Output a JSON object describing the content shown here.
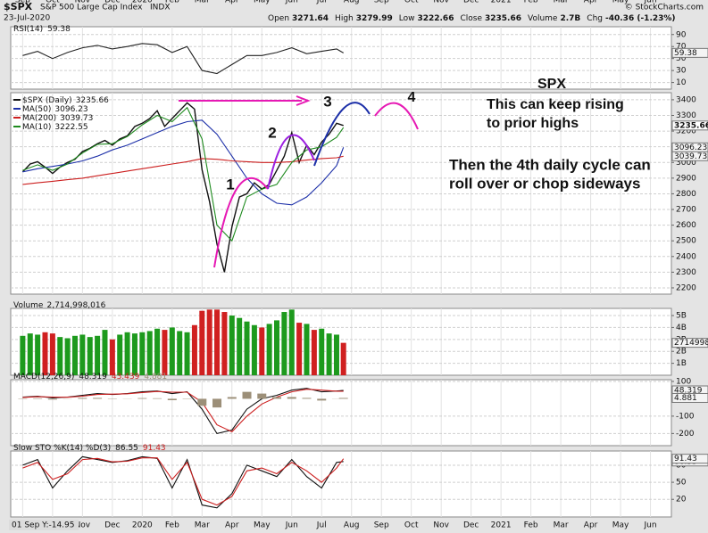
{
  "header": {
    "symbol": "$SPX",
    "name": "S&P 500 Large Cap Index",
    "exchange": "INDX",
    "date": "23-Jul-2020",
    "credit": "© StockCharts.com",
    "fields": [
      {
        "label": "Open",
        "value": "3271.64"
      },
      {
        "label": "High",
        "value": "3279.99"
      },
      {
        "label": "Low",
        "value": "3222.66"
      },
      {
        "label": "Close",
        "value": "3235.66"
      },
      {
        "label": "Volume",
        "value": "2.7B"
      },
      {
        "label": "Chg",
        "value": "-40.36 (-1.23%)"
      }
    ]
  },
  "chart_data": [
    {
      "type": "line",
      "title": "RSI(14)",
      "xlim": [
        -0.4,
        21.7
      ],
      "ylim": [
        -1,
        103
      ],
      "yticks": [
        90,
        70,
        50,
        30,
        10
      ],
      "grid": true,
      "series": [
        {
          "color": "#222222",
          "box": true,
          "x": [
            0,
            0.5,
            1,
            1.5,
            2,
            2.5,
            3,
            3.5,
            4,
            4.5,
            5,
            5.5,
            6,
            6.5,
            7,
            7.5,
            8,
            8.5,
            9,
            9.5,
            10,
            10.5,
            10.73
          ],
          "values": [
            55,
            62,
            50,
            60,
            68,
            72,
            66,
            70,
            75,
            73,
            60,
            70,
            30,
            25,
            40,
            55,
            55,
            60,
            68,
            58,
            62,
            66,
            59.38
          ]
        }
      ]
    },
    {
      "type": "line",
      "xlim": [
        -0.4,
        21.7
      ],
      "ylim": [
        2160,
        3445
      ],
      "grid": true,
      "yticks": [
        3400,
        3300,
        3200,
        3100,
        3000,
        2900,
        2800,
        2700,
        2600,
        2500,
        2400,
        2300,
        2200
      ],
      "xticks": [
        {
          "value": 0,
          "label": "Sep"
        },
        {
          "value": 1,
          "label": "Oct"
        },
        {
          "value": 2,
          "label": "Nov"
        },
        {
          "value": 3,
          "label": "Dec"
        },
        {
          "value": 4,
          "label": "2020"
        },
        {
          "value": 5,
          "label": "Feb"
        },
        {
          "value": 6,
          "label": "Mar"
        },
        {
          "value": 7,
          "label": "Apr"
        },
        {
          "value": 8,
          "label": "May"
        },
        {
          "value": 9,
          "label": "Jun"
        },
        {
          "value": 10,
          "label": "Jul"
        },
        {
          "value": 11,
          "label": "Aug"
        },
        {
          "value": 12,
          "label": "Sep"
        },
        {
          "value": 13,
          "label": "Oct"
        },
        {
          "value": 14,
          "label": "Nov"
        },
        {
          "value": 15,
          "label": "Dec"
        },
        {
          "value": 16,
          "label": "2021"
        },
        {
          "value": 17,
          "label": "Feb"
        },
        {
          "value": 18,
          "label": "Mar"
        },
        {
          "value": 19,
          "label": "Apr"
        },
        {
          "value": 20,
          "label": "May"
        },
        {
          "value": 21,
          "label": "Jun"
        }
      ],
      "series": [
        {
          "name": "$SPX (Daily)",
          "color": "#111111",
          "box": true,
          "x": [
            0,
            0.25,
            0.5,
            0.75,
            1,
            1.25,
            1.5,
            1.75,
            2,
            2.25,
            2.5,
            2.75,
            3,
            3.25,
            3.5,
            3.75,
            4,
            4.25,
            4.5,
            4.75,
            5,
            5.25,
            5.5,
            5.75,
            6,
            6.25,
            6.5,
            6.75,
            7,
            7.25,
            7.5,
            7.75,
            8,
            8.25,
            8.5,
            8.75,
            9,
            9.25,
            9.5,
            9.75,
            10,
            10.25,
            10.5,
            10.73
          ],
          "values": [
            2940,
            2990,
            3005,
            2970,
            2930,
            2970,
            3000,
            3020,
            3070,
            3090,
            3120,
            3140,
            3110,
            3150,
            3170,
            3230,
            3250,
            3280,
            3330,
            3230,
            3280,
            3330,
            3380,
            3340,
            2954,
            2750,
            2480,
            2300,
            2590,
            2780,
            2800,
            2870,
            2830,
            2860,
            2950,
            3040,
            3190,
            3000,
            3110,
            3050,
            3130,
            3180,
            3250,
            3235.66
          ]
        },
        {
          "name": "MA(50)",
          "color": "#1c2fa8",
          "box": true,
          "x": [
            0,
            0.5,
            1,
            1.5,
            2,
            2.5,
            3,
            3.5,
            4,
            4.5,
            5,
            5.5,
            6,
            6.5,
            7,
            7.5,
            8,
            8.5,
            9,
            9.5,
            10,
            10.5,
            10.73
          ],
          "values": [
            2940,
            2960,
            2975,
            2990,
            3010,
            3040,
            3080,
            3110,
            3150,
            3190,
            3230,
            3260,
            3270,
            3180,
            3040,
            2900,
            2800,
            2740,
            2730,
            2780,
            2870,
            2980,
            3096.23
          ]
        },
        {
          "name": "MA(200)",
          "color": "#cc1f1f",
          "box": true,
          "x": [
            0,
            0.5,
            1,
            1.5,
            2,
            2.5,
            3,
            3.5,
            4,
            4.5,
            5,
            5.5,
            6,
            6.5,
            7,
            7.5,
            8,
            8.5,
            9,
            9.5,
            10,
            10.5,
            10.73
          ],
          "values": [
            2860,
            2870,
            2880,
            2890,
            2900,
            2915,
            2930,
            2945,
            2960,
            2975,
            2990,
            3005,
            3025,
            3020,
            3010,
            3005,
            3000,
            3000,
            3005,
            3015,
            3025,
            3030,
            3039.73
          ]
        },
        {
          "name": "MA(10)",
          "color": "#1d8a1d",
          "x": [
            0,
            0.5,
            1,
            1.5,
            2,
            2.5,
            3,
            3.5,
            4,
            4.5,
            5,
            5.5,
            6,
            6.5,
            7,
            7.5,
            8,
            8.5,
            9,
            9.5,
            10,
            10.5,
            10.73
          ],
          "values": [
            2950,
            2985,
            2950,
            2990,
            3060,
            3115,
            3120,
            3165,
            3240,
            3300,
            3260,
            3350,
            3150,
            2600,
            2500,
            2780,
            2830,
            2860,
            3000,
            3080,
            3100,
            3160,
            3222.55
          ]
        }
      ],
      "annotations": [
        {
          "text": "SPX",
          "color": "#e619b4"
        },
        {
          "text": "This can keep rising",
          "color": "#e619b4"
        },
        {
          "text": "to prior highs",
          "color": "#e619b4"
        },
        {
          "text": "Then the 4th daily cycle can",
          "color": "#9b1fe0"
        },
        {
          "text": "roll over or chop sideways",
          "color": "#9b1fe0"
        },
        {
          "text": "1",
          "color": "#e619b4"
        },
        {
          "text": "2",
          "color": "#9b1fe0"
        },
        {
          "text": "3",
          "color": "#7a1fe0"
        },
        {
          "text": "4",
          "color": "#e619b4"
        }
      ]
    },
    {
      "type": "bar",
      "title": "Volume",
      "title_value_label": "2,714,998,016",
      "box_label": "2714998",
      "xlim": [
        -0.4,
        21.7
      ],
      "ylim": [
        0,
        5600000000
      ],
      "grid": true,
      "up_color": "#1d9a1d",
      "down_color": "#d02020",
      "yticks": [
        {
          "value": 5000000000,
          "label": "5B"
        },
        {
          "value": 4000000000,
          "label": "4B"
        },
        {
          "value": 3000000000,
          "label": "3B"
        },
        {
          "value": 2000000000,
          "label": "2B"
        },
        {
          "value": 1000000000,
          "label": "1B"
        }
      ],
      "series": [
        {
          "x": [
            0,
            0.25,
            0.5,
            0.75,
            1,
            1.25,
            1.5,
            1.75,
            2,
            2.25,
            2.5,
            2.75,
            3,
            3.25,
            3.5,
            3.75,
            4,
            4.25,
            4.5,
            4.75,
            5,
            5.25,
            5.5,
            5.75,
            6,
            6.25,
            6.5,
            6.75,
            7,
            7.25,
            7.5,
            7.75,
            8,
            8.25,
            8.5,
            8.75,
            9,
            9.25,
            9.5,
            9.75,
            10,
            10.25,
            10.5,
            10.73
          ],
          "values": [
            3300000000,
            3500000000,
            3400000000,
            3600000000,
            3500000000,
            3200000000,
            3100000000,
            3300000000,
            3400000000,
            3200000000,
            3300000000,
            3800000000,
            3000000000,
            3400000000,
            3600000000,
            3500000000,
            3600000000,
            3700000000,
            3900000000,
            3800000000,
            4000000000,
            3700000000,
            3600000000,
            4200000000,
            5400000000,
            5500000000,
            5500000000,
            5300000000,
            5000000000,
            4800000000,
            4500000000,
            4200000000,
            4000000000,
            4300000000,
            4600000000,
            5300000000,
            5500000000,
            4400000000,
            4300000000,
            3800000000,
            3900000000,
            3500000000,
            3400000000,
            2714998016
          ]
        }
      ]
    },
    {
      "type": "line",
      "title": "MACD(12,26,9)",
      "xlim": [
        -0.4,
        21.7
      ],
      "ylim": [
        -270,
        110
      ],
      "grid": true,
      "yticks": [
        100,
        -100,
        -200
      ],
      "series": [
        {
          "color": "#111111",
          "box": true,
          "x": [
            0,
            0.5,
            1,
            1.5,
            2,
            2.5,
            3,
            3.5,
            4,
            4.5,
            5,
            5.5,
            6,
            6.5,
            7,
            7.5,
            8,
            8.5,
            9,
            9.5,
            10,
            10.5,
            10.73
          ],
          "values": [
            10,
            15,
            5,
            10,
            20,
            30,
            25,
            30,
            40,
            45,
            30,
            40,
            -60,
            -200,
            -180,
            -60,
            0,
            20,
            50,
            60,
            40,
            45,
            48.319
          ]
        },
        {
          "color": "#cc1f1f",
          "x": [
            0,
            0.5,
            1,
            1.5,
            2,
            2.5,
            3,
            3.5,
            4,
            4.5,
            5,
            5.5,
            6,
            6.5,
            7,
            7.5,
            8,
            8.5,
            9,
            9.5,
            10,
            10.5,
            10.73
          ],
          "values": [
            8,
            12,
            10,
            9,
            15,
            25,
            27,
            29,
            36,
            42,
            38,
            38,
            -20,
            -150,
            -190,
            -100,
            -30,
            10,
            40,
            55,
            50,
            44,
            43.439
          ]
        },
        {
          "type": "bar",
          "color": "#9c8f78",
          "box": true,
          "x": [
            0,
            0.5,
            1,
            1.5,
            2,
            2.5,
            3,
            3.5,
            4,
            4.5,
            5,
            5.5,
            6,
            6.5,
            7,
            7.5,
            8,
            8.5,
            9,
            9.5,
            10,
            10.5,
            10.73
          ],
          "values": [
            2,
            3,
            -5,
            1,
            5,
            5,
            -2,
            1,
            4,
            3,
            -8,
            2,
            -40,
            -50,
            10,
            40,
            30,
            10,
            10,
            5,
            -10,
            1,
            4.881
          ]
        }
      ]
    },
    {
      "type": "line",
      "title": "Slow STO %K(14) %D(3)",
      "cursor_label": "01 Sep Y:-14.95",
      "xlim": [
        -0.4,
        21.7
      ],
      "ylim": [
        -11,
        105
      ],
      "grid": true,
      "yticks": [
        80,
        50,
        20
      ],
      "xticks": [
        {
          "value": 2,
          "label": "Nov"
        },
        {
          "value": 3,
          "label": "Dec"
        },
        {
          "value": 4,
          "label": "2020"
        },
        {
          "value": 5,
          "label": "Feb"
        },
        {
          "value": 6,
          "label": "Mar"
        },
        {
          "value": 7,
          "label": "Apr"
        },
        {
          "value": 8,
          "label": "May"
        },
        {
          "value": 9,
          "label": "Jun"
        },
        {
          "value": 10,
          "label": "Jul"
        },
        {
          "value": 11,
          "label": "Aug"
        },
        {
          "value": 12,
          "label": "Sep"
        },
        {
          "value": 13,
          "label": "Oct"
        },
        {
          "value": 14,
          "label": "Nov"
        },
        {
          "value": 15,
          "label": "Dec"
        },
        {
          "value": 16,
          "label": "2021"
        },
        {
          "value": 17,
          "label": "Feb"
        },
        {
          "value": 18,
          "label": "Mar"
        },
        {
          "value": 19,
          "label": "Apr"
        },
        {
          "value": 20,
          "label": "May"
        },
        {
          "value": 21,
          "label": "Jun"
        }
      ],
      "series": [
        {
          "color": "#111111",
          "box": true,
          "x": [
            0,
            0.5,
            1,
            1.5,
            2,
            2.5,
            3,
            3.5,
            4,
            4.5,
            5,
            5.5,
            6,
            6.5,
            7,
            7.5,
            8,
            8.5,
            9,
            9.5,
            10,
            10.5,
            10.73
          ],
          "values": [
            80,
            90,
            40,
            70,
            95,
            90,
            85,
            88,
            95,
            92,
            40,
            90,
            10,
            5,
            30,
            80,
            70,
            60,
            90,
            60,
            40,
            85,
            86.55
          ]
        },
        {
          "color": "#cc1f1f",
          "box": true,
          "x": [
            0,
            0.5,
            1,
            1.5,
            2,
            2.5,
            3,
            3.5,
            4,
            4.5,
            5,
            5.5,
            6,
            6.5,
            7,
            7.5,
            8,
            8.5,
            9,
            9.5,
            10,
            10.5,
            10.73
          ],
          "values": [
            75,
            85,
            55,
            65,
            90,
            92,
            86,
            87,
            93,
            93,
            55,
            85,
            20,
            10,
            25,
            70,
            75,
            65,
            85,
            70,
            50,
            75,
            91.43
          ]
        }
      ]
    }
  ]
}
